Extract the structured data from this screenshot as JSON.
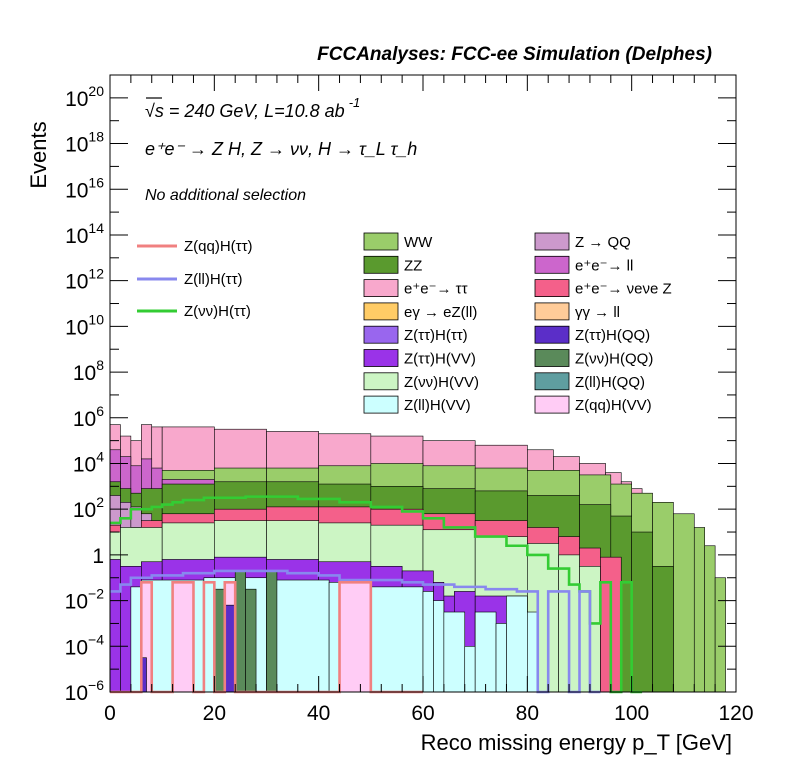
{
  "chart_data": {
    "type": "histogram",
    "title": "FCCAnalyses: FCC-ee Simulation (Delphes)",
    "annotations": {
      "energy": "√s = 240 GeV, L=10.8 ab",
      "energy_exp": "-1",
      "process": "e⁺e⁻ → Z H, Z → νν, H → τ_L τ_h",
      "selection": "No additional selection"
    },
    "xlabel": "Reco missing energy p_T [GeV]",
    "ylabel": "Events",
    "xlim": [
      0,
      120
    ],
    "ylim_log10": [
      -6,
      21
    ],
    "y_scale": "log",
    "x_ticks": [
      "0",
      "20",
      "40",
      "60",
      "80",
      "100",
      "120"
    ],
    "y_ticks": [
      {
        "exp": -6,
        "label": "10",
        "sup": "−6"
      },
      {
        "exp": -4,
        "label": "10",
        "sup": "−4"
      },
      {
        "exp": -2,
        "label": "10",
        "sup": "−2"
      },
      {
        "exp": 0,
        "label": "1",
        "sup": ""
      },
      {
        "exp": 2,
        "label": "10",
        "sup": "2"
      },
      {
        "exp": 4,
        "label": "10",
        "sup": "4"
      },
      {
        "exp": 6,
        "label": "10",
        "sup": "6"
      },
      {
        "exp": 8,
        "label": "10",
        "sup": "8"
      },
      {
        "exp": 10,
        "label": "10",
        "sup": "10"
      },
      {
        "exp": 12,
        "label": "10",
        "sup": "12"
      },
      {
        "exp": 14,
        "label": "10",
        "sup": "14"
      },
      {
        "exp": 16,
        "label": "10",
        "sup": "16"
      },
      {
        "exp": 18,
        "label": "10",
        "sup": "18"
      },
      {
        "exp": 20,
        "label": "10",
        "sup": "20"
      }
    ],
    "stack_series": [
      {
        "name": "ee_tautau",
        "color": "#f8a8cc",
        "bins_log10": [
          [
            0,
            2,
            5.7
          ],
          [
            2,
            4,
            5.2
          ],
          [
            4,
            6,
            5.0
          ],
          [
            6,
            8,
            5.7
          ],
          [
            8,
            10,
            5.6
          ],
          [
            10,
            20,
            5.6
          ],
          [
            20,
            30,
            5.5
          ],
          [
            30,
            40,
            5.4
          ],
          [
            40,
            50,
            5.3
          ],
          [
            50,
            60,
            5.2
          ],
          [
            60,
            70,
            5.0
          ],
          [
            70,
            80,
            4.8
          ],
          [
            80,
            85,
            4.6
          ],
          [
            85,
            90,
            4.3
          ],
          [
            90,
            95,
            4.0
          ],
          [
            95,
            98,
            3.6
          ],
          [
            98,
            100,
            3.2
          ],
          [
            100,
            102,
            2.9
          ]
        ]
      },
      {
        "name": "WW",
        "color": "#9acd6a",
        "bins_log10": [
          [
            0,
            2,
            4.0
          ],
          [
            2,
            4,
            3.6
          ],
          [
            4,
            6,
            3.4
          ],
          [
            6,
            10,
            3.6
          ],
          [
            10,
            20,
            3.7
          ],
          [
            20,
            30,
            3.8
          ],
          [
            30,
            40,
            3.8
          ],
          [
            40,
            50,
            3.9
          ],
          [
            50,
            60,
            4.0
          ],
          [
            60,
            70,
            3.9
          ],
          [
            70,
            80,
            3.8
          ],
          [
            80,
            90,
            3.7
          ],
          [
            90,
            96,
            3.5
          ],
          [
            96,
            100,
            3.1
          ],
          [
            100,
            104,
            2.7
          ],
          [
            104,
            108,
            2.3
          ],
          [
            108,
            112,
            1.8
          ],
          [
            112,
            114,
            1.2
          ],
          [
            114,
            116,
            0.4
          ],
          [
            116,
            118,
            -1.0
          ]
        ]
      },
      {
        "name": "ee_ll",
        "color": "#cc66cc",
        "bins_log10": [
          [
            0,
            2,
            4.6
          ],
          [
            2,
            4,
            4.3
          ],
          [
            4,
            6,
            3.9
          ],
          [
            6,
            8,
            4.2
          ],
          [
            8,
            10,
            3.8
          ],
          [
            10,
            20,
            3.3
          ],
          [
            20,
            30,
            3.1
          ],
          [
            30,
            40,
            2.8
          ],
          [
            40,
            50,
            2.5
          ],
          [
            50,
            60,
            2.2
          ],
          [
            60,
            70,
            2.0
          ],
          [
            70,
            80,
            1.8
          ]
        ]
      },
      {
        "name": "ZZ",
        "color": "#5a9a2e",
        "bins_log10": [
          [
            0,
            2,
            3.2
          ],
          [
            2,
            4,
            2.9
          ],
          [
            4,
            6,
            2.7
          ],
          [
            6,
            10,
            2.9
          ],
          [
            10,
            20,
            3.1
          ],
          [
            20,
            30,
            3.2
          ],
          [
            30,
            40,
            3.2
          ],
          [
            40,
            50,
            3.1
          ],
          [
            50,
            60,
            3.0
          ],
          [
            60,
            70,
            2.9
          ],
          [
            70,
            80,
            2.8
          ],
          [
            80,
            90,
            2.6
          ],
          [
            90,
            96,
            2.2
          ],
          [
            96,
            100,
            1.7
          ],
          [
            100,
            104,
            1.0
          ],
          [
            104,
            108,
            -0.5
          ]
        ]
      },
      {
        "name": "Z_QQ",
        "color": "#cc99cc",
        "bins_log10": [
          [
            0,
            2,
            2.6
          ],
          [
            2,
            4,
            2.3
          ],
          [
            4,
            6,
            2.1
          ],
          [
            6,
            8,
            1.8
          ]
        ]
      },
      {
        "name": "ee_nunu_Z",
        "color": "#f4608a",
        "bins_log10": [
          [
            0,
            2,
            1.3
          ],
          [
            2,
            4,
            1.1
          ],
          [
            4,
            6,
            1.2
          ],
          [
            6,
            10,
            1.5
          ],
          [
            10,
            20,
            1.8
          ],
          [
            20,
            30,
            2.0
          ],
          [
            30,
            40,
            2.1
          ],
          [
            40,
            50,
            2.1
          ],
          [
            50,
            60,
            2.0
          ],
          [
            60,
            70,
            1.8
          ],
          [
            70,
            80,
            1.5
          ],
          [
            80,
            86,
            1.2
          ],
          [
            86,
            90,
            0.8
          ],
          [
            90,
            94,
            0.3
          ],
          [
            94,
            98,
            -0.1
          ]
        ]
      },
      {
        "name": "Z_nunu_H_VV",
        "color": "#ccf5c4",
        "bins_log10": [
          [
            0,
            2,
            1.0
          ],
          [
            2,
            10,
            1.2
          ],
          [
            10,
            20,
            1.4
          ],
          [
            20,
            30,
            1.5
          ],
          [
            30,
            40,
            1.5
          ],
          [
            40,
            50,
            1.4
          ],
          [
            50,
            60,
            1.3
          ],
          [
            60,
            70,
            1.1
          ],
          [
            70,
            80,
            0.8
          ],
          [
            80,
            86,
            0.5
          ],
          [
            86,
            90,
            0.0
          ],
          [
            90,
            94,
            -0.5
          ]
        ]
      },
      {
        "name": "Z_tautau_H_VV",
        "color": "#9a33e8",
        "bins_log10": [
          [
            0,
            2,
            -0.2
          ],
          [
            2,
            6,
            -0.5
          ],
          [
            6,
            10,
            -0.3
          ],
          [
            10,
            20,
            -0.2
          ],
          [
            20,
            30,
            -0.1
          ],
          [
            30,
            40,
            -0.2
          ],
          [
            40,
            50,
            -0.3
          ],
          [
            50,
            56,
            -0.5
          ],
          [
            56,
            62,
            -0.7
          ],
          [
            62,
            64,
            -1.2
          ],
          [
            64,
            66,
            -1.8
          ],
          [
            66,
            70,
            -1.6
          ],
          [
            70,
            80,
            -1.8
          ]
        ]
      },
      {
        "name": "Z_ll_H_VV",
        "color": "#ccffff",
        "bins_log10": [
          [
            4,
            6,
            -1.4
          ],
          [
            6,
            18,
            -1.1
          ],
          [
            18,
            30,
            -1.0
          ],
          [
            30,
            42,
            -1.1
          ],
          [
            42,
            50,
            -1.2
          ],
          [
            50,
            60,
            -1.4
          ],
          [
            60,
            62,
            -1.6
          ],
          [
            62,
            64,
            -2.0
          ],
          [
            64,
            68,
            -2.5
          ],
          [
            68,
            70,
            -4.0
          ],
          [
            70,
            74,
            -2.5
          ],
          [
            74,
            76,
            -3.0
          ],
          [
            76,
            80,
            -1.8
          ],
          [
            80,
            82,
            -2.5
          ]
        ]
      },
      {
        "name": "Z_nunu_H_QQ",
        "color": "#5a8a5a",
        "bins_log10": [
          [
            20,
            22,
            -1.5
          ],
          [
            24,
            26,
            -0.7
          ],
          [
            26,
            28,
            -1.5
          ],
          [
            30,
            32,
            -0.7
          ],
          [
            44,
            46,
            -1.5
          ]
        ]
      },
      {
        "name": "Z_qq_H_VV",
        "color": "#ffccf5",
        "bins_log10": [
          [
            6,
            8,
            -1.2
          ],
          [
            12,
            16,
            -1.2
          ],
          [
            22,
            24,
            -1.2
          ],
          [
            44,
            50,
            -1.2
          ]
        ]
      },
      {
        "name": "Z_tautau_H_QQ",
        "color": "#5b2ec8",
        "bins_log10": [
          [
            6,
            7,
            -4.5
          ],
          [
            22,
            24,
            -2.2
          ]
        ]
      }
    ],
    "line_series": [
      {
        "name": "Z(νν)H(ττ)",
        "color": "#33cc33",
        "bins_log10": [
          [
            0,
            2,
            1.4
          ],
          [
            2,
            4,
            1.6
          ],
          [
            4,
            6,
            2.0
          ],
          [
            6,
            8,
            2.0
          ],
          [
            8,
            10,
            2.1
          ],
          [
            10,
            12,
            2.2
          ],
          [
            12,
            14,
            2.3
          ],
          [
            14,
            16,
            2.4
          ],
          [
            16,
            18,
            2.4
          ],
          [
            18,
            20,
            2.5
          ],
          [
            20,
            26,
            2.5
          ],
          [
            26,
            36,
            2.55
          ],
          [
            36,
            44,
            2.45
          ],
          [
            44,
            50,
            2.3
          ],
          [
            50,
            56,
            2.1
          ],
          [
            56,
            60,
            1.9
          ],
          [
            60,
            64,
            1.6
          ],
          [
            64,
            70,
            1.2
          ],
          [
            70,
            76,
            0.8
          ],
          [
            76,
            80,
            0.4
          ],
          [
            80,
            84,
            0.0
          ],
          [
            84,
            88,
            -0.6
          ],
          [
            88,
            90,
            -1.3
          ],
          [
            90,
            92,
            -1.6
          ],
          [
            92,
            94,
            -3.0
          ],
          [
            94,
            96,
            -1.2
          ],
          [
            96,
            98,
            -6.0
          ],
          [
            98,
            100,
            -1.2
          ],
          [
            100,
            102,
            -6.0
          ]
        ]
      },
      {
        "name": "Z(ll)H(ττ)",
        "color": "#8888ee",
        "bins_log10": [
          [
            0,
            2,
            -1.6
          ],
          [
            2,
            4,
            -1.3
          ],
          [
            4,
            8,
            -1.0
          ],
          [
            8,
            14,
            -0.9
          ],
          [
            14,
            20,
            -0.8
          ],
          [
            20,
            34,
            -0.7
          ],
          [
            34,
            40,
            -0.8
          ],
          [
            40,
            44,
            -0.9
          ],
          [
            44,
            50,
            -1.1
          ],
          [
            50,
            56,
            -1.1
          ],
          [
            56,
            60,
            -1.2
          ],
          [
            60,
            66,
            -1.3
          ],
          [
            66,
            72,
            -1.4
          ],
          [
            72,
            78,
            -1.5
          ],
          [
            78,
            82,
            -1.6
          ],
          [
            82,
            84,
            -6.0
          ],
          [
            84,
            88,
            -1.6
          ],
          [
            88,
            90,
            -6.0
          ],
          [
            90,
            92,
            -1.6
          ],
          [
            92,
            94,
            -6.0
          ]
        ]
      },
      {
        "name": "Z(qq)H(ττ)",
        "color": "#f08080",
        "bins_log10": [
          [
            0,
            6,
            -6.0
          ],
          [
            6,
            8,
            -1.2
          ],
          [
            8,
            12,
            -6.0
          ],
          [
            12,
            16,
            -1.2
          ],
          [
            16,
            18,
            -6.0
          ],
          [
            18,
            20,
            -1.2
          ],
          [
            20,
            22,
            -6.0
          ],
          [
            22,
            24,
            -1.2
          ],
          [
            24,
            44,
            -6.0
          ],
          [
            44,
            50,
            -1.2
          ],
          [
            50,
            60,
            -6.0
          ]
        ]
      }
    ],
    "legend": {
      "placement": "top-center",
      "lines": [
        {
          "label": "Z(qq)H(ττ)",
          "color": "#f08080"
        },
        {
          "label": "Z(ll)H(ττ)",
          "color": "#8888ee"
        },
        {
          "label": "Z(νν)H(ττ)",
          "color": "#33cc33"
        }
      ],
      "boxes_col1": [
        {
          "label": "WW",
          "color": "#9acd6a"
        },
        {
          "label": "ZZ",
          "color": "#5a9a2e"
        },
        {
          "label": "e⁺e⁻→ ττ",
          "color": "#f8a8cc"
        },
        {
          "label": "eγ → eZ(ll)",
          "color": "#ffcc66"
        },
        {
          "label": "Z(ττ)H(ττ)",
          "color": "#9966ee"
        },
        {
          "label": "Z(ττ)H(VV)",
          "color": "#9a33e8"
        },
        {
          "label": "Z(νν)H(VV)",
          "color": "#ccf5c4"
        },
        {
          "label": "Z(ll)H(VV)",
          "color": "#ccffff"
        }
      ],
      "boxes_col2": [
        {
          "label": "Z → QQ",
          "color": "#cc99cc"
        },
        {
          "label": "e⁺e⁻→ ll",
          "color": "#cc66cc"
        },
        {
          "label": "e⁺e⁻→ νeνe Z",
          "color": "#f4608a"
        },
        {
          "label": "γγ → ll",
          "color": "#ffcc99"
        },
        {
          "label": "Z(ττ)H(QQ)",
          "color": "#5b2ec8"
        },
        {
          "label": "Z(νν)H(QQ)",
          "color": "#5a8a5a"
        },
        {
          "label": "Z(ll)H(QQ)",
          "color": "#5f9ea0"
        },
        {
          "label": "Z(qq)H(VV)",
          "color": "#ffccf5"
        }
      ]
    }
  }
}
